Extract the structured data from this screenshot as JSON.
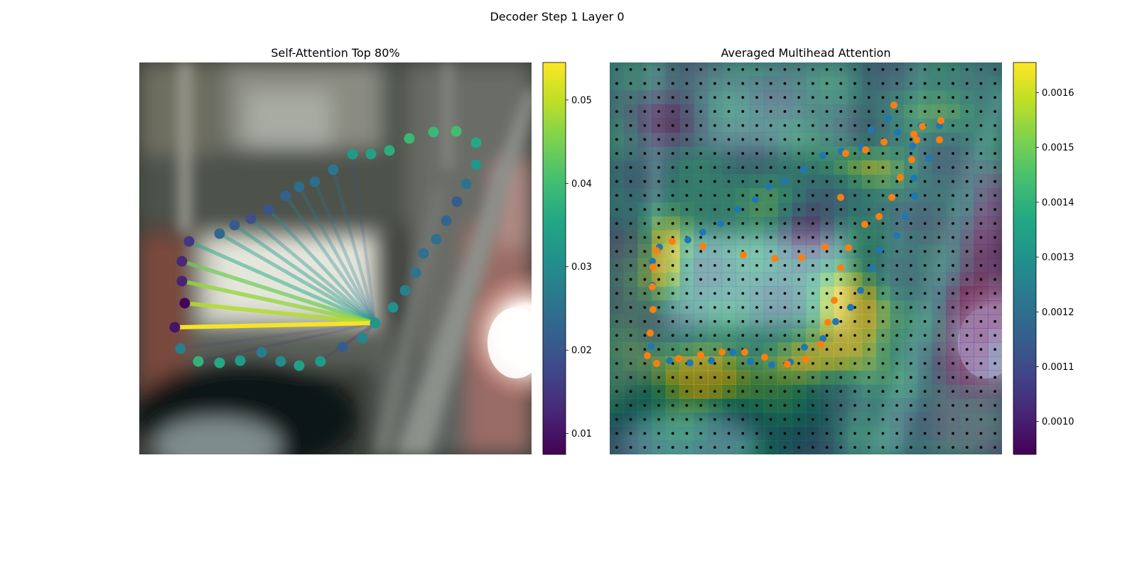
{
  "figure": {
    "title": "Decoder Step 1 Layer 0"
  },
  "colors": {
    "viridis": [
      "#440154",
      "#482475",
      "#414487",
      "#355f8d",
      "#2a788e",
      "#21918c",
      "#22a884",
      "#44bf70",
      "#7ad151",
      "#bddf26",
      "#fde725"
    ],
    "predicted_points": "#ff7f0e",
    "reference_points": "#1f77b4",
    "grid_dots": "#000000"
  },
  "chart_data": [
    {
      "type": "scatter",
      "title": "Self-Attention Top 80%",
      "background": "blurred photo of vehicle window and mirror",
      "colorbar": {
        "min": 0.0075,
        "max": 0.0545,
        "ticks": [
          0.01,
          0.02,
          0.03,
          0.04,
          0.05
        ],
        "tick_labels": [
          "0.01",
          "0.02",
          "0.03",
          "0.04",
          "0.05"
        ],
        "colormap": "viridis"
      },
      "query_point_index": 11,
      "points": [
        {
          "x": 50,
          "y": 373,
          "v": 0.01
        },
        {
          "x": 58,
          "y": 403,
          "v": 0.028
        },
        {
          "x": 83,
          "y": 421,
          "v": 0.038
        },
        {
          "x": 113,
          "y": 423,
          "v": 0.036
        },
        {
          "x": 142,
          "y": 420,
          "v": 0.033
        },
        {
          "x": 172,
          "y": 408,
          "v": 0.027
        },
        {
          "x": 199,
          "y": 421,
          "v": 0.03
        },
        {
          "x": 225,
          "y": 427,
          "v": 0.034
        },
        {
          "x": 255,
          "y": 421,
          "v": 0.033
        },
        {
          "x": 286,
          "y": 401,
          "v": 0.021
        },
        {
          "x": 314,
          "y": 388,
          "v": 0.029
        },
        {
          "x": 332,
          "y": 367,
          "v": 0.032
        },
        {
          "x": 357,
          "y": 345,
          "v": 0.031
        },
        {
          "x": 374,
          "y": 321,
          "v": 0.028
        },
        {
          "x": 389,
          "y": 296,
          "v": 0.026
        },
        {
          "x": 400,
          "y": 269,
          "v": 0.025
        },
        {
          "x": 418,
          "y": 249,
          "v": 0.025
        },
        {
          "x": 432,
          "y": 223,
          "v": 0.023
        },
        {
          "x": 447,
          "y": 196,
          "v": 0.021
        },
        {
          "x": 460,
          "y": 171,
          "v": 0.025
        },
        {
          "x": 474,
          "y": 144,
          "v": 0.032
        },
        {
          "x": 474,
          "y": 113,
          "v": 0.036
        },
        {
          "x": 446,
          "y": 97,
          "v": 0.04
        },
        {
          "x": 414,
          "y": 98,
          "v": 0.039
        },
        {
          "x": 380,
          "y": 107,
          "v": 0.039
        },
        {
          "x": 352,
          "y": 124,
          "v": 0.037
        },
        {
          "x": 326,
          "y": 129,
          "v": 0.034
        },
        {
          "x": 300,
          "y": 129,
          "v": 0.033
        },
        {
          "x": 273,
          "y": 151,
          "v": 0.026
        },
        {
          "x": 247,
          "y": 168,
          "v": 0.024
        },
        {
          "x": 225,
          "y": 175,
          "v": 0.024
        },
        {
          "x": 206,
          "y": 188,
          "v": 0.022
        },
        {
          "x": 182,
          "y": 207,
          "v": 0.02
        },
        {
          "x": 157,
          "y": 220,
          "v": 0.019
        },
        {
          "x": 134,
          "y": 229,
          "v": 0.021
        },
        {
          "x": 113,
          "y": 241,
          "v": 0.023
        },
        {
          "x": 70,
          "y": 252,
          "v": 0.015
        },
        {
          "x": 60,
          "y": 280,
          "v": 0.013
        },
        {
          "x": 60,
          "y": 308,
          "v": 0.012
        },
        {
          "x": 64,
          "y": 339,
          "v": 0.008
        }
      ],
      "links": [
        {
          "target": 0,
          "w": 0.054
        },
        {
          "target": 39,
          "w": 0.049
        },
        {
          "target": 38,
          "w": 0.047
        },
        {
          "target": 37,
          "w": 0.044
        },
        {
          "target": 36,
          "w": 0.036
        },
        {
          "target": 35,
          "w": 0.033
        },
        {
          "target": 34,
          "w": 0.032
        },
        {
          "target": 33,
          "w": 0.03
        },
        {
          "target": 32,
          "w": 0.03
        },
        {
          "target": 31,
          "w": 0.028
        },
        {
          "target": 30,
          "w": 0.027
        },
        {
          "target": 29,
          "w": 0.026
        },
        {
          "target": 28,
          "w": 0.025
        },
        {
          "target": 27,
          "w": 0.02
        },
        {
          "target": 1,
          "w": 0.016
        },
        {
          "target": 9,
          "w": 0.015
        },
        {
          "target": 10,
          "w": 0.014
        },
        {
          "target": 8,
          "w": 0.013
        },
        {
          "target": 2,
          "w": 0.012
        }
      ]
    },
    {
      "type": "heatmap",
      "title": "Averaged Multihead Attention",
      "background": "blurred photo of vehicle window and mirror",
      "colorbar": {
        "min": 0.00094,
        "max": 0.001655,
        "ticks": [
          0.001,
          0.0011,
          0.0012,
          0.0013,
          0.0014,
          0.0015,
          0.0016
        ],
        "tick_labels": [
          "0.0010",
          "0.0011",
          "0.0012",
          "0.0013",
          "0.0014",
          "0.0015",
          "0.0016"
        ],
        "colormap": "viridis"
      },
      "grid": {
        "rows": 28,
        "cols": 28
      },
      "hot_regions": [
        {
          "cx": 6,
          "cy": 22,
          "rx": 5,
          "ry": 2.4,
          "w": 0.55
        },
        {
          "cx": 17,
          "cy": 18,
          "rx": 2.5,
          "ry": 3.5,
          "w": 0.75
        },
        {
          "cx": 13,
          "cy": 21,
          "rx": 3,
          "ry": 1.6,
          "w": 0.35
        },
        {
          "cx": 3.5,
          "cy": 13.5,
          "rx": 1.6,
          "ry": 2.6,
          "w": 0.55
        },
        {
          "cx": 17.5,
          "cy": 7,
          "rx": 3,
          "ry": 1.5,
          "w": 0.35
        },
        {
          "cx": 24,
          "cy": 2.8,
          "rx": 2.5,
          "ry": 1.5,
          "w": 0.3
        },
        {
          "cx": 9,
          "cy": 10,
          "rx": 4,
          "ry": 2,
          "w": 0.25
        }
      ],
      "cold_regions": [
        {
          "cx": 26,
          "cy": 18,
          "rx": 2.5,
          "ry": 6,
          "w": 0.5
        },
        {
          "cx": 3.5,
          "cy": 3.5,
          "rx": 3,
          "ry": 2.5,
          "w": 0.3
        },
        {
          "cx": 13.5,
          "cy": 11,
          "rx": 2,
          "ry": 2,
          "w": 0.35
        },
        {
          "cx": 26.5,
          "cy": 10,
          "rx": 1.5,
          "ry": 2.5,
          "w": 0.3
        }
      ],
      "predicted_points": [
        [
          53,
          413
        ],
        [
          66,
          424
        ],
        [
          97,
          417
        ],
        [
          128,
          412
        ],
        [
          158,
          408
        ],
        [
          190,
          408
        ],
        [
          218,
          415
        ],
        [
          250,
          425
        ],
        [
          276,
          418
        ],
        [
          297,
          397
        ],
        [
          307,
          366
        ],
        [
          316,
          335
        ],
        [
          325,
          289
        ],
        [
          336,
          261
        ],
        [
          359,
          228
        ],
        [
          379,
          217
        ],
        [
          397,
          190
        ],
        [
          409,
          162
        ],
        [
          425,
          137
        ],
        [
          432,
          109
        ],
        [
          440,
          90
        ],
        [
          466,
          82
        ],
        [
          464,
          109
        ],
        [
          428,
          101
        ],
        [
          400,
          60
        ],
        [
          386,
          112
        ],
        [
          360,
          123
        ],
        [
          332,
          128
        ],
        [
          325,
          190
        ],
        [
          303,
          260
        ],
        [
          270,
          275
        ],
        [
          232,
          276
        ],
        [
          188,
          271
        ],
        [
          131,
          259
        ],
        [
          88,
          252
        ],
        [
          66,
          265
        ],
        [
          61,
          288
        ],
        [
          60,
          316
        ],
        [
          61,
          348
        ],
        [
          57,
          381
        ]
      ],
      "reference_points": [
        [
          58,
          400
        ],
        [
          84,
          420
        ],
        [
          113,
          423
        ],
        [
          143,
          420
        ],
        [
          173,
          408
        ],
        [
          198,
          421
        ],
        [
          228,
          426
        ],
        [
          254,
          422
        ],
        [
          274,
          401
        ],
        [
          300,
          389
        ],
        [
          318,
          365
        ],
        [
          339,
          345
        ],
        [
          353,
          321
        ],
        [
          369,
          290
        ],
        [
          380,
          264
        ],
        [
          404,
          244
        ],
        [
          416,
          217
        ],
        [
          429,
          188
        ],
        [
          428,
          163
        ],
        [
          449,
          135
        ],
        [
          464,
          89
        ],
        [
          438,
          89
        ],
        [
          426,
          118
        ],
        [
          405,
          98
        ],
        [
          392,
          79
        ],
        [
          368,
          95
        ],
        [
          354,
          120
        ],
        [
          326,
          125
        ],
        [
          300,
          131
        ],
        [
          273,
          151
        ],
        [
          246,
          167
        ],
        [
          224,
          175
        ],
        [
          205,
          193
        ],
        [
          180,
          207
        ],
        [
          156,
          227
        ],
        [
          131,
          239
        ],
        [
          110,
          250
        ],
        [
          70,
          260
        ],
        [
          60,
          280
        ],
        [
          60,
          314
        ]
      ]
    }
  ]
}
